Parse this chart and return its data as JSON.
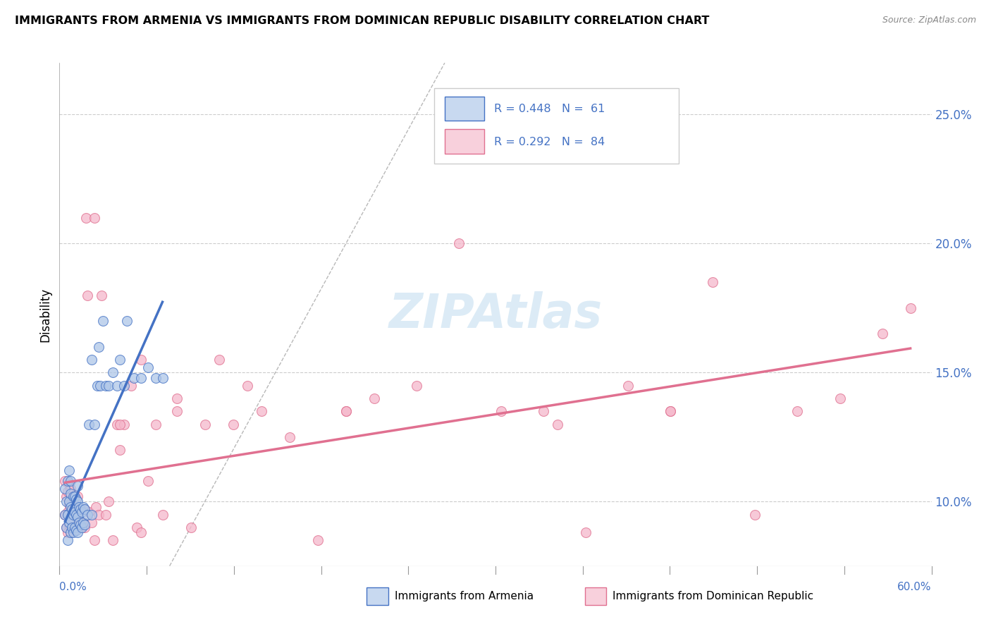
{
  "title": "IMMIGRANTS FROM ARMENIA VS IMMIGRANTS FROM DOMINICAN REPUBLIC DISABILITY CORRELATION CHART",
  "source": "Source: ZipAtlas.com",
  "ylabel": "Disability",
  "y_ticks": [
    0.1,
    0.15,
    0.2,
    0.25
  ],
  "y_tick_labels": [
    "10.0%",
    "15.0%",
    "20.0%",
    "25.0%"
  ],
  "xlim": [
    -0.003,
    0.615
  ],
  "ylim": [
    0.075,
    0.27
  ],
  "legend_r1": "R = 0.448",
  "legend_n1": "N =  61",
  "legend_r2": "R = 0.292",
  "legend_n2": "N =  84",
  "color_armenia": "#aec6e8",
  "color_dr": "#f5b8cb",
  "color_armenia_line": "#4472c4",
  "color_dr_line": "#e07090",
  "color_diagonal": "#b8b8b8",
  "legend_box_color1": "#c8d9f0",
  "legend_box_color2": "#f8d0dc",
  "watermark": "ZIPAtlas",
  "armenia_scatter_x": [
    0.001,
    0.001,
    0.002,
    0.002,
    0.003,
    0.003,
    0.003,
    0.004,
    0.004,
    0.004,
    0.005,
    0.005,
    0.005,
    0.005,
    0.005,
    0.006,
    0.006,
    0.007,
    0.007,
    0.007,
    0.008,
    0.008,
    0.008,
    0.009,
    0.009,
    0.009,
    0.01,
    0.01,
    0.01,
    0.01,
    0.011,
    0.011,
    0.012,
    0.012,
    0.013,
    0.013,
    0.014,
    0.014,
    0.015,
    0.015,
    0.017,
    0.018,
    0.02,
    0.02,
    0.022,
    0.024,
    0.025,
    0.026,
    0.028,
    0.03,
    0.032,
    0.035,
    0.038,
    0.04,
    0.043,
    0.045,
    0.05,
    0.055,
    0.06,
    0.065,
    0.07
  ],
  "armenia_scatter_y": [
    0.095,
    0.105,
    0.09,
    0.1,
    0.085,
    0.095,
    0.108,
    0.092,
    0.1,
    0.112,
    0.088,
    0.093,
    0.098,
    0.103,
    0.108,
    0.09,
    0.097,
    0.088,
    0.095,
    0.102,
    0.09,
    0.096,
    0.102,
    0.089,
    0.095,
    0.101,
    0.088,
    0.094,
    0.1,
    0.106,
    0.092,
    0.098,
    0.091,
    0.097,
    0.09,
    0.096,
    0.092,
    0.098,
    0.091,
    0.097,
    0.095,
    0.13,
    0.095,
    0.155,
    0.13,
    0.145,
    0.16,
    0.145,
    0.17,
    0.145,
    0.145,
    0.15,
    0.145,
    0.155,
    0.145,
    0.17,
    0.148,
    0.148,
    0.152,
    0.148,
    0.148
  ],
  "dr_scatter_x": [
    0.001,
    0.001,
    0.002,
    0.002,
    0.003,
    0.003,
    0.003,
    0.004,
    0.004,
    0.004,
    0.005,
    0.005,
    0.005,
    0.005,
    0.006,
    0.006,
    0.007,
    0.007,
    0.008,
    0.008,
    0.009,
    0.009,
    0.01,
    0.01,
    0.01,
    0.011,
    0.011,
    0.012,
    0.013,
    0.013,
    0.014,
    0.015,
    0.015,
    0.016,
    0.017,
    0.018,
    0.02,
    0.022,
    0.023,
    0.025,
    0.027,
    0.03,
    0.032,
    0.035,
    0.038,
    0.04,
    0.043,
    0.048,
    0.052,
    0.055,
    0.06,
    0.065,
    0.07,
    0.08,
    0.09,
    0.1,
    0.11,
    0.12,
    0.14,
    0.16,
    0.18,
    0.2,
    0.22,
    0.25,
    0.28,
    0.31,
    0.34,
    0.37,
    0.4,
    0.43,
    0.46,
    0.49,
    0.52,
    0.55,
    0.58,
    0.6,
    0.43,
    0.35,
    0.2,
    0.13,
    0.08,
    0.055,
    0.04,
    0.022
  ],
  "dr_scatter_y": [
    0.095,
    0.108,
    0.09,
    0.102,
    0.088,
    0.096,
    0.104,
    0.091,
    0.099,
    0.107,
    0.088,
    0.093,
    0.099,
    0.105,
    0.09,
    0.097,
    0.089,
    0.096,
    0.089,
    0.096,
    0.091,
    0.098,
    0.09,
    0.096,
    0.102,
    0.091,
    0.097,
    0.092,
    0.091,
    0.097,
    0.092,
    0.09,
    0.097,
    0.21,
    0.18,
    0.096,
    0.092,
    0.21,
    0.098,
    0.095,
    0.18,
    0.095,
    0.1,
    0.085,
    0.13,
    0.12,
    0.13,
    0.145,
    0.09,
    0.155,
    0.108,
    0.13,
    0.095,
    0.14,
    0.09,
    0.13,
    0.155,
    0.13,
    0.135,
    0.125,
    0.085,
    0.135,
    0.14,
    0.145,
    0.2,
    0.135,
    0.135,
    0.088,
    0.145,
    0.135,
    0.185,
    0.095,
    0.135,
    0.14,
    0.165,
    0.175,
    0.135,
    0.13,
    0.135,
    0.145,
    0.135,
    0.088,
    0.13,
    0.085
  ]
}
